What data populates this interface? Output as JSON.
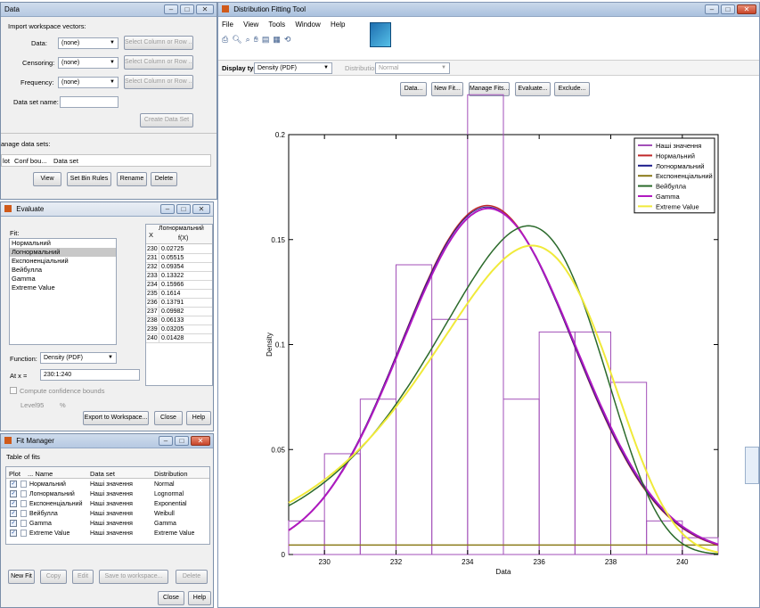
{
  "data_win": {
    "title": "Data",
    "import_header": "Import workspace vectors:",
    "data_label": "Data:",
    "censoring_label": "Censoring:",
    "frequency_label": "Frequency:",
    "none": "(none)",
    "select_col": "Select Column or Row ...",
    "dataset_name_label": "Data set name:",
    "create_btn": "Create Data Set",
    "manage_header": "anage data sets:",
    "col_plot": "lot",
    "col_conf": "Conf bou...",
    "col_dataset": "Data set",
    "view_btn": "View",
    "binrules_btn": "Set Bin Rules",
    "rename_btn": "Rename",
    "delete_btn": "Delete"
  },
  "main_win": {
    "title": "Distribution Fitting Tool",
    "menu": [
      "File",
      "View",
      "Tools",
      "Window",
      "Help"
    ],
    "display_type_label": "Display type:",
    "display_type_value": "Density (PDF)",
    "distribution_label": "Distribution:",
    "distribution_value": "Normal",
    "buttons": [
      "Data...",
      "New Fit...",
      "Manage Fits...",
      "Evaluate...",
      "Exclude..."
    ]
  },
  "evaluate_win": {
    "title": "Evaluate",
    "fit_label": "Fit:",
    "fits": [
      "Нормальний",
      "Логнормальний",
      "Експоненціальний",
      "Вейбулла",
      "Gamma",
      "Extreme Value"
    ],
    "selected_fit": "Логнормальний",
    "function_label": "Function:",
    "function_value": "Density (PDF)",
    "atx_label": "At x =",
    "atx_value": "230:1:240",
    "confidence_label": "Compute confidence bounds",
    "level_label": "Level",
    "level_value": "95",
    "pct": "%",
    "export_btn": "Export to Workspace...",
    "close_btn": "Close",
    "help_btn": "Help",
    "table_x_header": "X",
    "table_col_header": "Логнормальний",
    "table_sub_header": "f(X)",
    "table_rows": [
      [
        "230",
        "0.02725"
      ],
      [
        "231",
        "0.05515"
      ],
      [
        "232",
        "0.09354"
      ],
      [
        "233",
        "0.13322"
      ],
      [
        "234",
        "0.15966"
      ],
      [
        "235",
        "0.1614"
      ],
      [
        "236",
        "0.13791"
      ],
      [
        "237",
        "0.09982"
      ],
      [
        "238",
        "0.06133"
      ],
      [
        "239",
        "0.03205"
      ],
      [
        "240",
        "0.01428"
      ]
    ]
  },
  "fitmgr_win": {
    "title": "Fit Manager",
    "table_label": "Table of fits",
    "headers": [
      "Plot",
      "... Name",
      "Data set",
      "Distribution"
    ],
    "rows": [
      [
        "Нормальний",
        "Наші значення",
        "Normal"
      ],
      [
        "Логнормальний",
        "Наші значення",
        "Lognormal"
      ],
      [
        "Експоненціальний",
        "Наші значення",
        "Exponential"
      ],
      [
        "Вейбулла",
        "Наші значення",
        "Weibull"
      ],
      [
        "Gamma",
        "Наші значення",
        "Gamma"
      ],
      [
        "Extreme Value",
        "Наші значення",
        "Extreme Value"
      ]
    ],
    "new_fit_btn": "New Fit",
    "copy_btn": "Copy",
    "edit_btn": "Edit",
    "save_btn": "Save to workspace...",
    "delete_btn": "Delete",
    "close_btn": "Close",
    "help_btn": "Help"
  },
  "chart_data": {
    "type": "histogram",
    "title": "",
    "xlabel": "Data",
    "ylabel": "Density",
    "xlim": [
      229,
      241
    ],
    "ylim": [
      0,
      0.2
    ],
    "x_ticks": [
      230,
      232,
      234,
      236,
      238,
      240
    ],
    "y_ticks": [
      0,
      0.05,
      0.1,
      0.15,
      0.2
    ],
    "y_tick_labels": [
      "0",
      "0.05",
      "0.1",
      "0.15",
      "0.2"
    ],
    "bins": [
      {
        "x0": 229,
        "x1": 230,
        "h": 0.016
      },
      {
        "x0": 230,
        "x1": 231,
        "h": 0.048
      },
      {
        "x0": 231,
        "x1": 232,
        "h": 0.074
      },
      {
        "x0": 232,
        "x1": 233,
        "h": 0.138
      },
      {
        "x0": 233,
        "x1": 234,
        "h": 0.112
      },
      {
        "x0": 234,
        "x1": 235,
        "h": 0.219
      },
      {
        "x0": 235,
        "x1": 236,
        "h": 0.074
      },
      {
        "x0": 236,
        "x1": 237,
        "h": 0.106
      },
      {
        "x0": 237,
        "x1": 238,
        "h": 0.106
      },
      {
        "x0": 238,
        "x1": 239,
        "h": 0.082
      },
      {
        "x0": 239,
        "x1": 240,
        "h": 0.016
      },
      {
        "x0": 240,
        "x1": 241,
        "h": 0.008
      }
    ],
    "series": [
      {
        "name": "Наші значення",
        "color": "#a24fb8"
      },
      {
        "name": "Нормальний",
        "color": "#c0282a",
        "mean": 234.55,
        "sd": 2.4
      },
      {
        "name": "Логнормальний",
        "color": "#1c1c8c",
        "mean": 234.55,
        "sd": 2.41
      },
      {
        "name": "Експоненціальний",
        "color": "#8a7a18",
        "value": 0.0045
      },
      {
        "name": "Вейбулла",
        "color": "#2b6a2b",
        "mode": 235.7,
        "sd": 2.35
      },
      {
        "name": "Gamma",
        "color": "#b019c0",
        "mean": 234.58,
        "sd": 2.42
      },
      {
        "name": "Extreme Value",
        "color": "#f0ea3a",
        "mode": 235.8,
        "sd": 2.5
      }
    ]
  }
}
